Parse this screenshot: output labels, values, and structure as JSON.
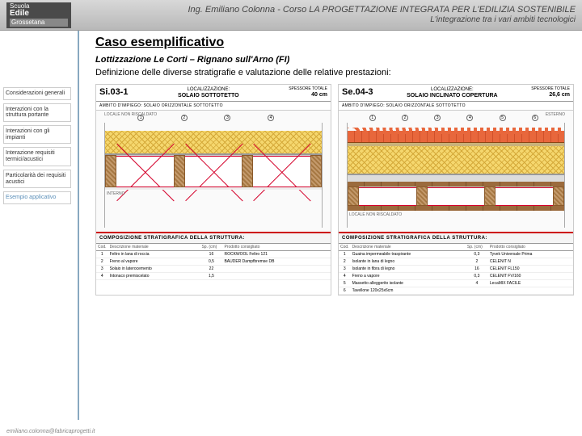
{
  "header": {
    "logo": {
      "line1": "Scuola",
      "line2": "Edile",
      "line3": "Grossetana"
    },
    "title1": "Ing. Emiliano Colonna - Corso LA PROGETTAZIONE INTEGRATA PER L'EDILIZIA SOSTENIBILE",
    "title2": "L'integrazione tra i vari ambiti tecnologici"
  },
  "sidebar": {
    "items": [
      "Considerazioni generali",
      "Interazioni con la struttura portante",
      "Interazioni con gli impianti",
      "Interazione requisiti termici/acustici",
      "Particolarità dei requisiti acustici",
      "Esempio applicativo"
    ],
    "activeIndex": 5
  },
  "content": {
    "heading": "Caso esemplificativo",
    "subheading": "Lottizzazione Le Corti – Rignano sull'Arno (FI)",
    "description": "Definizione delle diverse stratigrafie e valutazione delle relative prestazioni:"
  },
  "diagrams": [
    {
      "code": "Si.03-1",
      "locLabel": "LOCALIZZAZIONE:",
      "locValue": "SOLAIO SOTTOTETTO",
      "thickLabel": "SPESSORE TOTALE",
      "thickValue": "40 cm",
      "ambit": "AMBITO D'IMPIEGO: SOLAIO ORIZZONTALE SOTTOTETTO",
      "topLabel": "LOCALE NON RISCALDATO",
      "bottomLabel": "INTERNO",
      "markers": [
        "1",
        "2",
        "3",
        "4"
      ],
      "compTitle": "COMPOSIZIONE STRATIGRAFICA DELLA STRUTTURA:",
      "cols": [
        "Cod.",
        "Descrizione materiale",
        "Sp. (cm)",
        "Prodotto consigliato"
      ],
      "rows": [
        [
          "1",
          "Feltro in lana di roccia",
          "16",
          "ROCKWOOL Feltro 121"
        ],
        [
          "2",
          "Freno al vapore",
          "0,5",
          "BAUDER Dampfbremse DB"
        ],
        [
          "3",
          "Solaio in laterocemento",
          "22",
          ""
        ],
        [
          "4",
          "Intonaco premiscelato",
          "1,5",
          ""
        ]
      ]
    },
    {
      "code": "Se.04-3",
      "locLabel": "LOCALIZZAZIONE:",
      "locValue": "SOLAIO INCLINATO COPERTURA",
      "thickLabel": "SPESSORE TOTALE",
      "thickValue": "26,6 cm",
      "ambit": "AMBITO D'IMPIEGO: SOLAIO ORIZZONTALE SOTTOTETTO",
      "topLabel": "ESTERNO",
      "bottomLabel": "LOCALE NON RISCALDATO",
      "markers": [
        "1",
        "2",
        "3",
        "4",
        "5",
        "6"
      ],
      "compTitle": "COMPOSIZIONE STRATIGRAFICA DELLA STRUTTURA:",
      "cols": [
        "Cod.",
        "Descrizione materiale",
        "Sp. (cm)",
        "Prodotto consigliato"
      ],
      "rows": [
        [
          "1",
          "Guaina impermeabile traspirante",
          "0,3",
          "Tyvek Universale Prima"
        ],
        [
          "2",
          "Isolante in lana di legno",
          "2",
          "CELENIT N"
        ],
        [
          "3",
          "Isolante in fibra di legno",
          "16",
          "CELENIT FL150"
        ],
        [
          "4",
          "Freno a vapore",
          "0,3",
          "CELENIT FV/160"
        ],
        [
          "5",
          "Massetto alleggerito isolante",
          "4",
          "LecaMIX FACILE"
        ],
        [
          "6",
          "Tavellone 120x25x6cm",
          "",
          ""
        ]
      ]
    }
  ],
  "footer": "emiliano.colonna@fabricaprogetti.it",
  "colors": {
    "accent": "#5B8FB9",
    "tile": "#e8673c",
    "wool": "#f5d76e",
    "wood": "#9b6b3d",
    "red": "#d4002a"
  }
}
